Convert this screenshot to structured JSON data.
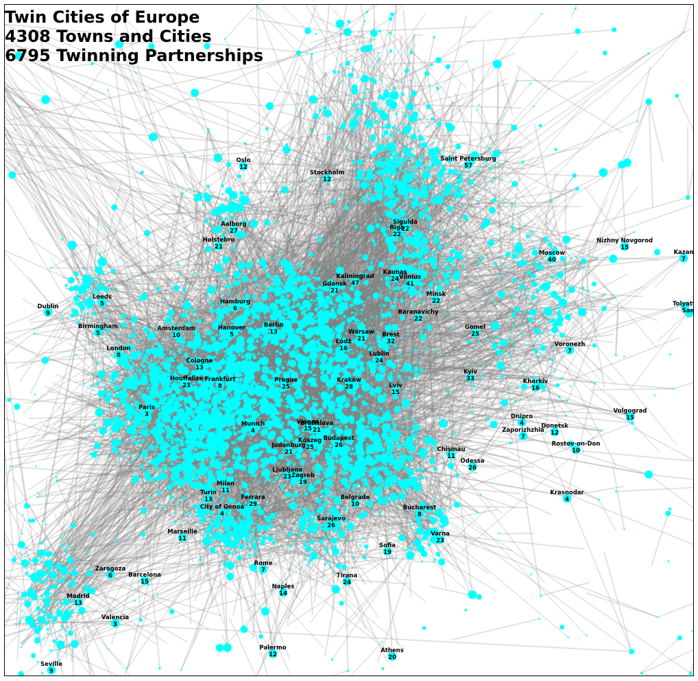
{
  "title_lines": [
    "Twin Cities of Europe",
    "4308 Towns and Cities",
    "6795 Twinning Partnerships"
  ],
  "colors": {
    "node": "#00ffff",
    "edge": "#808080",
    "label": "#000000",
    "background": "#ffffff"
  },
  "cities": [
    {
      "name": "Oslo",
      "count": "12"
    },
    {
      "name": "Stockholm",
      "count": "12"
    },
    {
      "name": "Saint Petersburg",
      "count": "57"
    },
    {
      "name": "Aalborg",
      "count": "27"
    },
    {
      "name": "Holstebro",
      "count": "21"
    },
    {
      "name": "Sigulda",
      "count": "22"
    },
    {
      "name": "Riga",
      "count": "22"
    },
    {
      "name": "Nizhny Novgorod",
      "count": "15"
    },
    {
      "name": "Moscow",
      "count": "40"
    },
    {
      "name": "Kazan",
      "count": "7"
    },
    {
      "name": "Kaunas",
      "count": "24"
    },
    {
      "name": "Kaliningrad",
      "count": "47"
    },
    {
      "name": "Vilnius",
      "count": "41"
    },
    {
      "name": "Gdansk",
      "count": "21"
    },
    {
      "name": "Minsk",
      "count": "22"
    },
    {
      "name": "Leeds",
      "count": "5"
    },
    {
      "name": "Dublin",
      "count": "9"
    },
    {
      "name": "Hamburg",
      "count": "6"
    },
    {
      "name": "Baranavichy",
      "count": "22"
    },
    {
      "name": "Tolyatti",
      "count": ""
    },
    {
      "name": "Sam",
      "count": ""
    },
    {
      "name": "Birmingham",
      "count": "5"
    },
    {
      "name": "Amsterdam",
      "count": "10"
    },
    {
      "name": "Hanover",
      "count": "5"
    },
    {
      "name": "Berlin",
      "count": "13"
    },
    {
      "name": "Gomel",
      "count": "25"
    },
    {
      "name": "Warsaw",
      "count": "21"
    },
    {
      "name": "Brest",
      "count": "32"
    },
    {
      "name": "Łódź",
      "count": "16"
    },
    {
      "name": "London",
      "count": "8"
    },
    {
      "name": "Voronezh",
      "count": "7"
    },
    {
      "name": "Lublin",
      "count": "24"
    },
    {
      "name": "Cologne",
      "count": "13"
    },
    {
      "name": "Kyiv",
      "count": "33"
    },
    {
      "name": "Houffalize",
      "count": "23"
    },
    {
      "name": "Frankfurt",
      "count": "8"
    },
    {
      "name": "Prague",
      "count": "25"
    },
    {
      "name": "Kraków",
      "count": "28"
    },
    {
      "name": "Kharkiv",
      "count": "16"
    },
    {
      "name": "Lviv",
      "count": "15"
    },
    {
      "name": "Paris",
      "count": "3"
    },
    {
      "name": "Volgograd",
      "count": "15"
    },
    {
      "name": "Dnipro",
      "count": "4"
    },
    {
      "name": "Munich",
      "count": "4"
    },
    {
      "name": "Vienna",
      "count": "15"
    },
    {
      "name": "Bratislava",
      "count": "21"
    },
    {
      "name": "Zaporizhzhia",
      "count": "7"
    },
    {
      "name": "Donetsk",
      "count": "12"
    },
    {
      "name": "Kőszeg",
      "count": "25"
    },
    {
      "name": "Budapest",
      "count": "26"
    },
    {
      "name": "Rostov-on-Don",
      "count": "10"
    },
    {
      "name": "Judenburg",
      "count": "21"
    },
    {
      "name": "Chișinău",
      "count": "11"
    },
    {
      "name": "Odessa",
      "count": "26"
    },
    {
      "name": "Ljubljana",
      "count": "23"
    },
    {
      "name": "Zagreb",
      "count": "19"
    },
    {
      "name": "Milan",
      "count": "11"
    },
    {
      "name": "Turin",
      "count": "13"
    },
    {
      "name": "Krasnodar",
      "count": "4"
    },
    {
      "name": "Ferrara",
      "count": "29"
    },
    {
      "name": "Belgrade",
      "count": "10"
    },
    {
      "name": "City of Genoa",
      "count": "4"
    },
    {
      "name": "Bucharest",
      "count": "8"
    },
    {
      "name": "Sarajevo",
      "count": "26"
    },
    {
      "name": "Marseille",
      "count": "11"
    },
    {
      "name": "Varna",
      "count": "23"
    },
    {
      "name": "Sofia",
      "count": "19"
    },
    {
      "name": "Rome",
      "count": "7"
    },
    {
      "name": "Zaragoza",
      "count": "6"
    },
    {
      "name": "Barcelona",
      "count": "15"
    },
    {
      "name": "Tirana",
      "count": "24"
    },
    {
      "name": "Naples",
      "count": "14"
    },
    {
      "name": "Madrid",
      "count": "13"
    },
    {
      "name": "Valencia",
      "count": "3"
    },
    {
      "name": "Palermo",
      "count": "12"
    },
    {
      "name": "Athens",
      "count": "20"
    },
    {
      "name": "Seville",
      "count": "9"
    }
  ]
}
